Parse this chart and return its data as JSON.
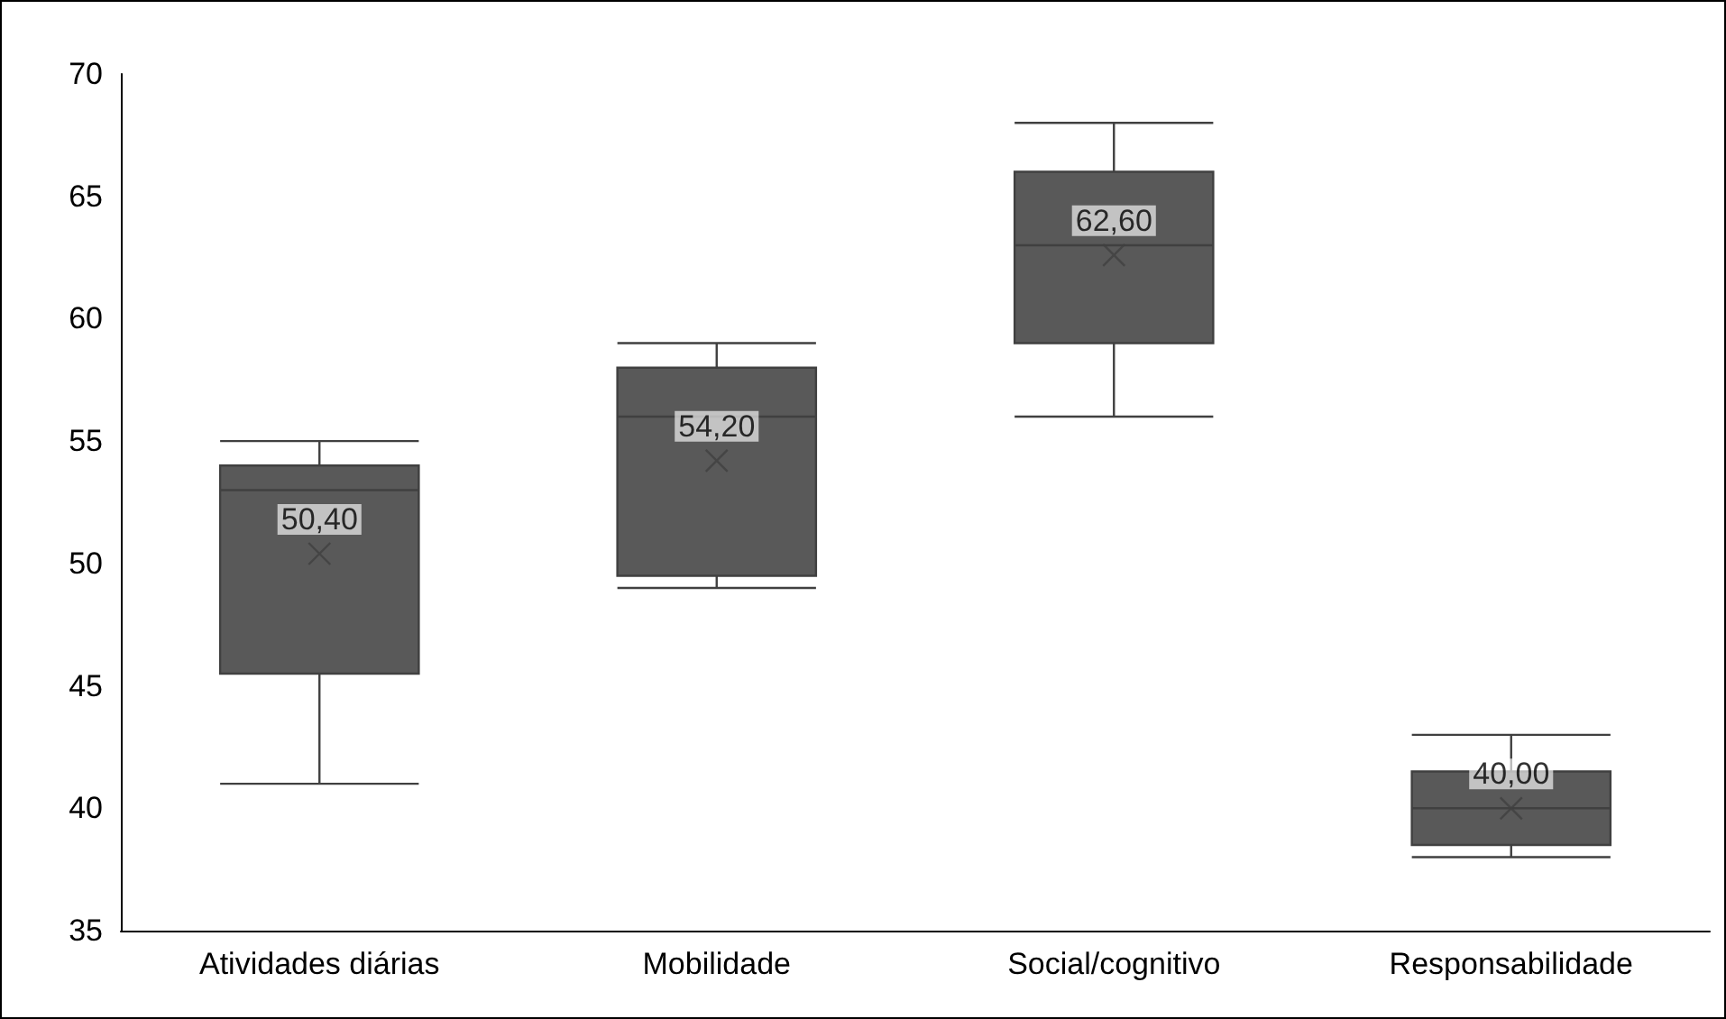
{
  "chart_data": {
    "type": "box",
    "categories": [
      "Atividades diárias",
      "Mobilidade",
      "Social/cognitivo",
      "Responsabilidade"
    ],
    "boxes": [
      {
        "low": 41,
        "q1": 45.5,
        "median": 53,
        "q3": 54,
        "high": 55,
        "mean": 50.4
      },
      {
        "low": 49,
        "q1": 49.5,
        "median": 56,
        "q3": 58,
        "high": 59,
        "mean": 54.2
      },
      {
        "low": 56,
        "q1": 59,
        "median": 63,
        "q3": 66,
        "high": 68,
        "mean": 62.6
      },
      {
        "low": 38,
        "q1": 38.5,
        "median": 40,
        "q3": 41.5,
        "high": 43,
        "mean": 40
      }
    ],
    "value_labels": [
      "50,40",
      "54,20",
      "62,60",
      "40,00"
    ],
    "color": "#595959",
    "ylim": [
      35,
      70
    ],
    "yticks": [
      35,
      40,
      45,
      50,
      55,
      60,
      65,
      70
    ]
  }
}
